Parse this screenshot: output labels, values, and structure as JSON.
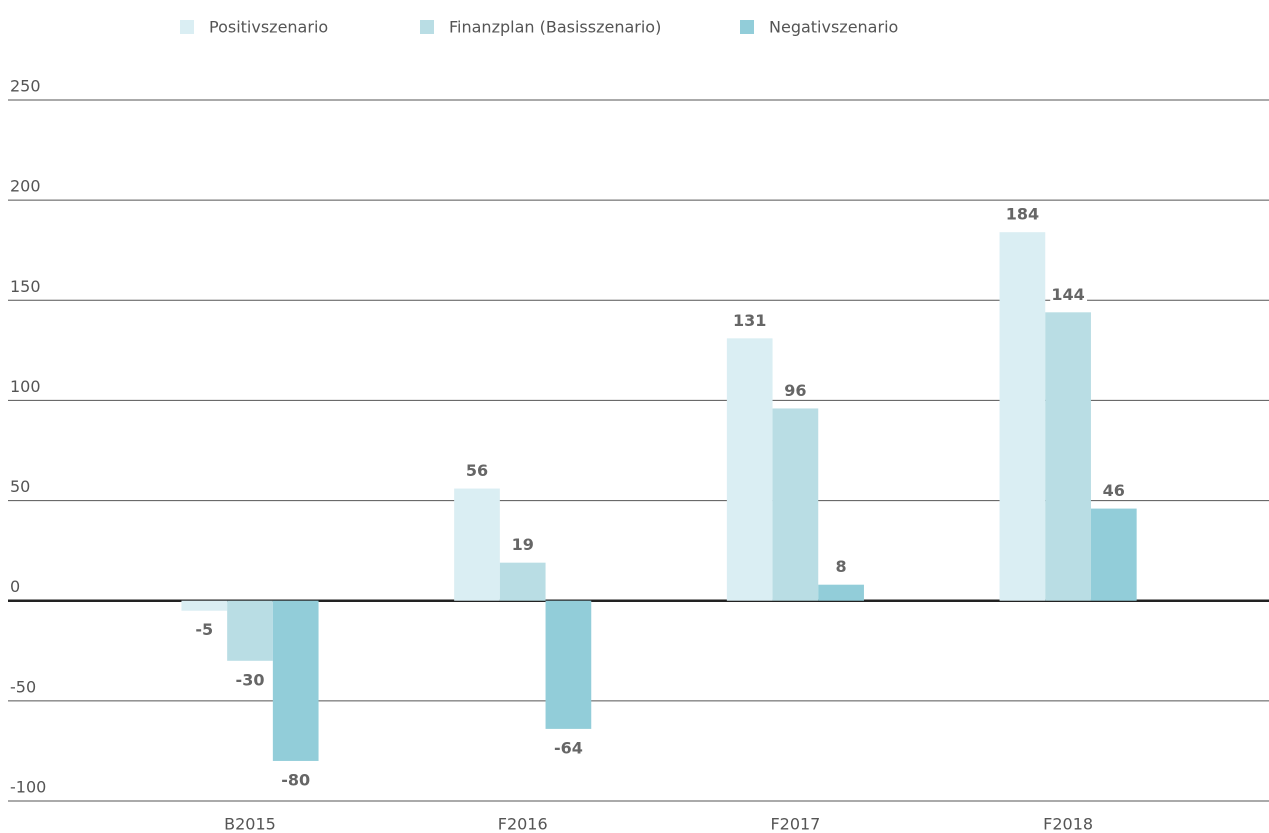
{
  "chart_data": {
    "type": "bar",
    "categories": [
      "B2015",
      "F2016",
      "F2017",
      "F2018"
    ],
    "series": [
      {
        "name": "Positivszenario",
        "color": "#daeef3",
        "values": [
          -5,
          56,
          131,
          184
        ]
      },
      {
        "name": "Finanzplan (Basisszenario)",
        "color": "#b9dde4",
        "values": [
          -30,
          19,
          96,
          144
        ]
      },
      {
        "name": "Negativszenario",
        "color": "#92cdd9",
        "values": [
          -80,
          -64,
          8,
          46
        ]
      }
    ],
    "ylim": [
      -100,
      250
    ],
    "yticks": [
      -100,
      -50,
      0,
      50,
      100,
      150,
      200,
      250
    ],
    "grid": true,
    "legend": "top"
  }
}
